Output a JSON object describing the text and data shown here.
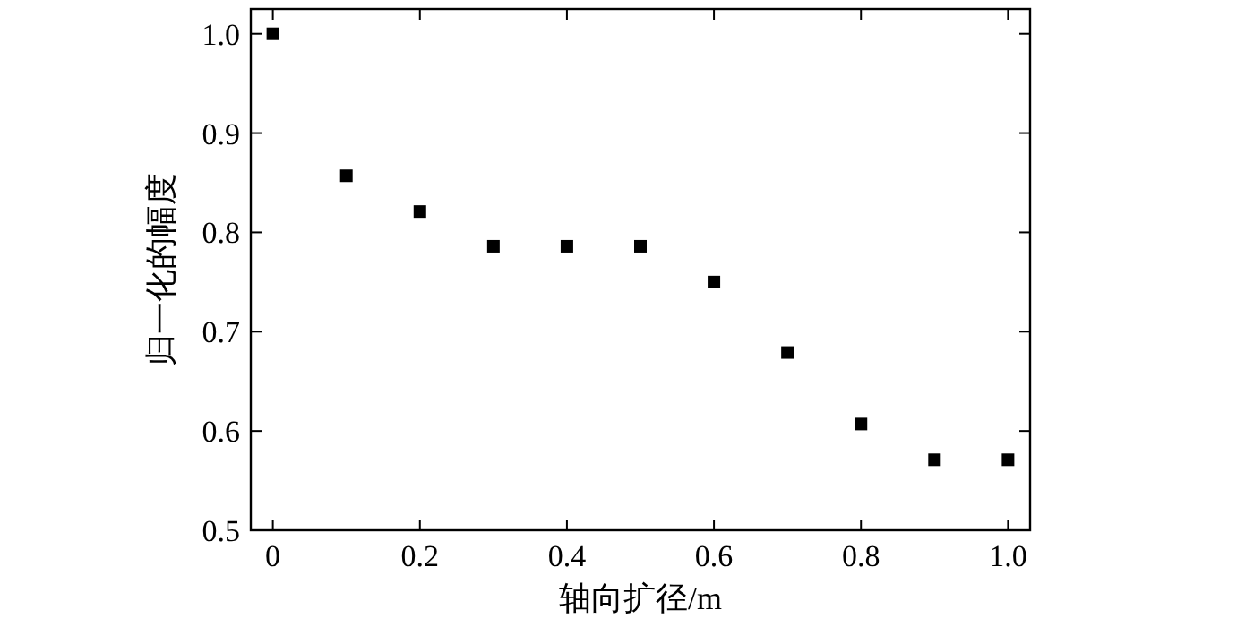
{
  "chart_data": {
    "type": "scatter",
    "xlabel": "轴向扩径/m",
    "ylabel": "归一化的幅度",
    "x": [
      0,
      0.1,
      0.2,
      0.3,
      0.4,
      0.5,
      0.6,
      0.7,
      0.8,
      0.9,
      1.0
    ],
    "values": [
      1.0,
      0.857,
      0.821,
      0.786,
      0.786,
      0.786,
      0.75,
      0.679,
      0.607,
      0.571,
      0.571
    ],
    "color": "#000000",
    "marker": "square",
    "xlim": [
      -0.03,
      1.03
    ],
    "ylim": [
      0.5,
      1.025
    ],
    "xticks": [
      {
        "value": 0,
        "label": "0"
      },
      0.2,
      0.4,
      0.6,
      0.8,
      {
        "value": 1.0,
        "label": "1.0"
      }
    ],
    "yticks": [
      0.5,
      0.6,
      0.7,
      0.8,
      0.9,
      {
        "value": 1.0,
        "label": "1.0"
      }
    ]
  }
}
